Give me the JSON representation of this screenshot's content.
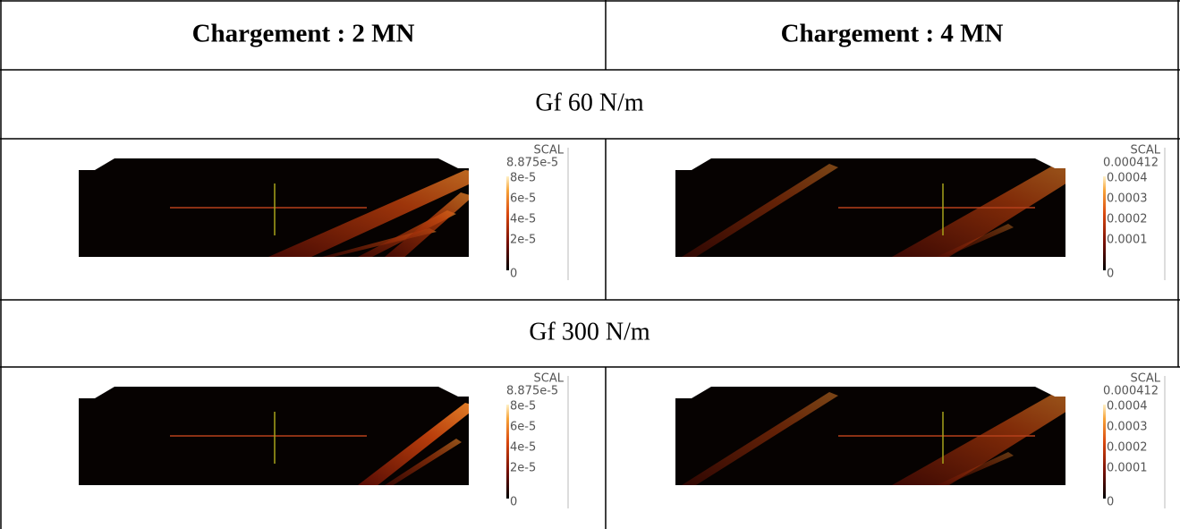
{
  "header": {
    "columns": [
      "Chargement : 2 MN",
      "Chargement : 4 MN"
    ]
  },
  "sections": [
    {
      "label": "Gf 60 N/m",
      "panels": [
        {
          "legend": {
            "title": "SCAL",
            "labels": [
              "8.875e-5",
              "8e-5",
              "6e-5",
              "4e-5",
              "2e-5",
              "0"
            ]
          }
        },
        {
          "legend": {
            "title": "SCAL",
            "labels": [
              "0.000412",
              "0.0004",
              "0.0003",
              "0.0002",
              "0.0001",
              "0"
            ]
          }
        }
      ]
    },
    {
      "label": "Gf 300 N/m",
      "panels": [
        {
          "legend": {
            "title": "SCAL",
            "labels": [
              "8.875e-5",
              "8e-5",
              "6e-5",
              "4e-5",
              "2e-5",
              "0"
            ]
          }
        },
        {
          "legend": {
            "title": "SCAL",
            "labels": [
              "0.000412",
              "0.0004",
              "0.0003",
              "0.0002",
              "0.0001",
              "0"
            ]
          }
        }
      ]
    }
  ]
}
